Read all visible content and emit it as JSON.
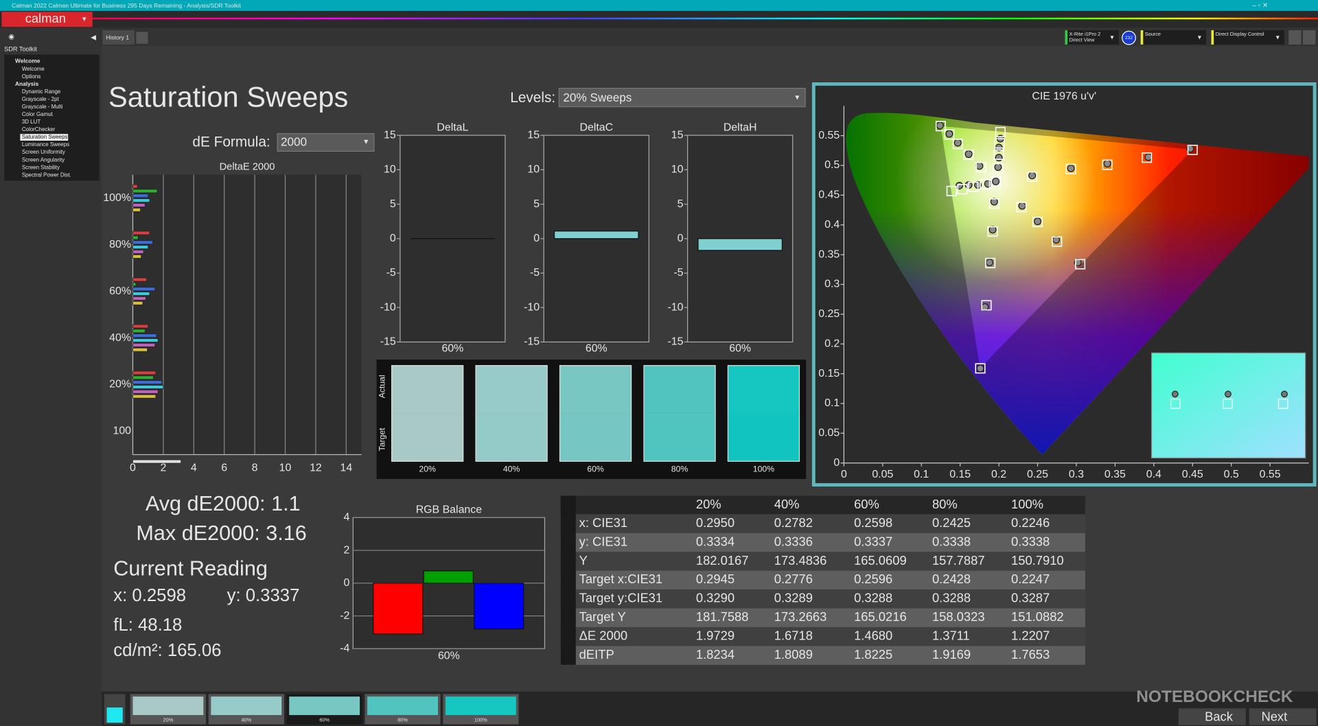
{
  "window": {
    "title": "Calman 2022 Calman Ultimate for Business 295 Days Remaining  - Analysis/SDR Toolkit",
    "logo": "calman"
  },
  "tabs": [
    "History 1"
  ],
  "devices": [
    {
      "lines": [
        "X-Rite i1Pro 2",
        "Direct View"
      ],
      "badge": "232"
    },
    {
      "lines": [
        "Source"
      ]
    },
    {
      "lines": [
        "Direct Display Control"
      ]
    }
  ],
  "sidebar": {
    "title": "SDR Toolkit",
    "tree": [
      {
        "label": "Welcome",
        "children": [
          "Welcome",
          "Options"
        ]
      },
      {
        "label": "Analysis",
        "children": [
          "Dynamic Range",
          "Grayscale - 2pt",
          "Grayscale - Multi",
          "Color Gamut",
          "3D LUT",
          "ColorChecker",
          "Saturation Sweeps",
          "Luminance Sweeps",
          "Screen Uniformity",
          "Screen Angularity",
          "Screen Stability",
          "Spectral Power Dist."
        ]
      }
    ]
  },
  "page": {
    "title": "Saturation Sweeps",
    "levels_label": "Levels:",
    "levels_value": "20% Sweeps",
    "formula_label": "dE Formula:",
    "formula_value": "2000"
  },
  "deltae_chart": {
    "type": "bar",
    "orientation": "horizontal",
    "title": "DeltaE 2000",
    "categories": [
      "100%",
      "80%",
      "60%",
      "40%",
      "20%",
      "100"
    ],
    "series": [
      {
        "color": "#d84040",
        "values": [
          0.3,
          1.1,
          0.9,
          1.0,
          1.5,
          null
        ]
      },
      {
        "color": "#30b030",
        "values": [
          1.6,
          0.35,
          0.2,
          0.8,
          1.35,
          null
        ]
      },
      {
        "color": "#3a6ee0",
        "values": [
          1.0,
          1.3,
          1.45,
          1.55,
          1.9,
          null
        ]
      },
      {
        "color": "#40c8d8",
        "values": [
          1.1,
          1.0,
          1.1,
          1.65,
          2.0,
          null
        ]
      },
      {
        "color": "#c060c0",
        "values": [
          0.8,
          0.7,
          0.85,
          1.45,
          1.65,
          null
        ]
      },
      {
        "color": "#d8c040",
        "values": [
          0.5,
          0.55,
          0.65,
          0.95,
          1.5,
          null
        ]
      },
      {
        "color": "#e0e0e0",
        "values": [
          null,
          null,
          null,
          null,
          null,
          3.16
        ]
      }
    ],
    "xlim": [
      0,
      15
    ],
    "xticks": [
      0,
      2,
      4,
      6,
      8,
      10,
      12,
      14
    ],
    "grid": true
  },
  "delta_charts": [
    {
      "type": "bar",
      "title": "DeltaL",
      "category": "60%",
      "value": 0,
      "color": "#7fd0d0",
      "ylim": [
        -15,
        15
      ],
      "yticks": [
        15,
        10,
        5,
        0,
        -5,
        -10,
        -15
      ]
    },
    {
      "type": "bar",
      "title": "DeltaC",
      "category": "60%",
      "value": 1.1,
      "color": "#7fd0d0",
      "ylim": [
        -15,
        15
      ],
      "yticks": [
        15,
        10,
        5,
        0,
        -5,
        -10,
        -15
      ]
    },
    {
      "type": "bar",
      "title": "DeltaH",
      "category": "60%",
      "value": -1.7,
      "color": "#7fd0d0",
      "ylim": [
        -15,
        15
      ],
      "yticks": [
        15,
        10,
        5,
        0,
        -5,
        -10,
        -15
      ]
    }
  ],
  "swatches": {
    "labels": [
      "Actual",
      "Target"
    ],
    "items": [
      {
        "label": "20%",
        "actual": "#a9c9c7",
        "target": "#a9c9c7"
      },
      {
        "label": "40%",
        "actual": "#96cbc9",
        "target": "#94cbc8"
      },
      {
        "label": "60%",
        "actual": "#78c7c3",
        "target": "#76c7c3"
      },
      {
        "label": "80%",
        "actual": "#52c4bf",
        "target": "#50c4bf"
      },
      {
        "label": "100%",
        "actual": "#16c6c1",
        "target": "#12c4bf"
      }
    ]
  },
  "summary": {
    "avg": "Avg dE2000: 1.1",
    "max": "Max dE2000: 3.16",
    "current_title": "Current Reading",
    "x": "x: 0.2598",
    "y": "y: 0.3337",
    "fl": "fL: 48.18",
    "cdm2": "cd/m²: 165.06"
  },
  "rgb_balance": {
    "type": "bar",
    "title": "RGB Balance",
    "category": "60%",
    "series": [
      {
        "color": "#ff0000",
        "value": -3.1
      },
      {
        "color": "#00a000",
        "value": 0.75
      },
      {
        "color": "#0000ff",
        "value": -2.8
      }
    ],
    "ylim": [
      -4,
      4
    ],
    "yticks": [
      4,
      2,
      0,
      -2,
      -4
    ],
    "grid": true
  },
  "table": {
    "header": [
      "20%",
      "40%",
      "60%",
      "80%",
      "100%"
    ],
    "rows": [
      {
        "label": "x: CIE31",
        "values": [
          "0.2950",
          "0.2782",
          "0.2598",
          "0.2425",
          "0.2246"
        ]
      },
      {
        "label": "y: CIE31",
        "values": [
          "0.3334",
          "0.3336",
          "0.3337",
          "0.3338",
          "0.3338"
        ]
      },
      {
        "label": "Y",
        "values": [
          "182.0167",
          "173.4836",
          "165.0609",
          "157.7887",
          "150.7910"
        ]
      },
      {
        "label": "Target x:CIE31",
        "values": [
          "0.2945",
          "0.2776",
          "0.2596",
          "0.2428",
          "0.2247"
        ]
      },
      {
        "label": "Target y:CIE31",
        "values": [
          "0.3290",
          "0.3289",
          "0.3288",
          "0.3288",
          "0.3287"
        ]
      },
      {
        "label": "Target Y",
        "values": [
          "181.7588",
          "173.2663",
          "165.0216",
          "158.0323",
          "151.0882"
        ]
      },
      {
        "label": "ΔE 2000",
        "values": [
          "1.9729",
          "1.6718",
          "1.4680",
          "1.3711",
          "1.2207"
        ]
      },
      {
        "label": "dEITP",
        "values": [
          "1.8234",
          "1.8089",
          "1.8225",
          "1.9169",
          "1.7653"
        ]
      }
    ]
  },
  "cie": {
    "type": "scatter",
    "title": "CIE 1976 u'v'",
    "xlim": [
      0,
      0.6
    ],
    "ylim": [
      0,
      0.6
    ],
    "xticks": [
      0,
      0.05,
      0.1,
      0.15,
      0.2,
      0.25,
      0.3,
      0.35,
      0.4,
      0.45,
      0.5,
      0.55
    ],
    "yticks": [
      0,
      0.05,
      0.1,
      0.15,
      0.2,
      0.25,
      0.3,
      0.35,
      0.4,
      0.45,
      0.5,
      0.55
    ],
    "targets": {
      "u": [
        0.196,
        0.243,
        0.293,
        0.34,
        0.391,
        0.45,
        0.177,
        0.161,
        0.147,
        0.136,
        0.125,
        0.194,
        0.192,
        0.189,
        0.184,
        0.176,
        0.182,
        0.167,
        0.153,
        0.139,
        0.229,
        0.25,
        0.275,
        0.305,
        0.199,
        0.2,
        0.201,
        0.202
      ],
      "v": [
        0.473,
        0.481,
        0.494,
        0.501,
        0.513,
        0.526,
        0.497,
        0.518,
        0.536,
        0.552,
        0.566,
        0.436,
        0.389,
        0.336,
        0.265,
        0.159,
        0.468,
        0.464,
        0.46,
        0.457,
        0.43,
        0.405,
        0.372,
        0.334,
        0.495,
        0.518,
        0.537,
        0.556
      ]
    },
    "measured": {
      "u": [
        0.196,
        0.243,
        0.293,
        0.34,
        0.393,
        0.447,
        0.175,
        0.161,
        0.147,
        0.136,
        0.124,
        0.194,
        0.192,
        0.188,
        0.182,
        0.176,
        0.186,
        0.173,
        0.161,
        0.149,
        0.23,
        0.25,
        0.274,
        0.302,
        0.199,
        0.2,
        0.2,
        0.202
      ],
      "v": [
        0.473,
        0.483,
        0.495,
        0.503,
        0.514,
        0.528,
        0.499,
        0.519,
        0.538,
        0.553,
        0.567,
        0.439,
        0.392,
        0.337,
        0.262,
        0.159,
        0.469,
        0.467,
        0.467,
        0.466,
        0.432,
        0.406,
        0.375,
        0.337,
        0.497,
        0.513,
        0.53,
        0.545
      ]
    }
  },
  "footer": {
    "thumbnails": [
      "20%",
      "40%",
      "60%",
      "80%",
      "100%"
    ],
    "buttons": [
      "Back",
      "Next"
    ],
    "watermark": "NOTEBOOKCHECK"
  }
}
